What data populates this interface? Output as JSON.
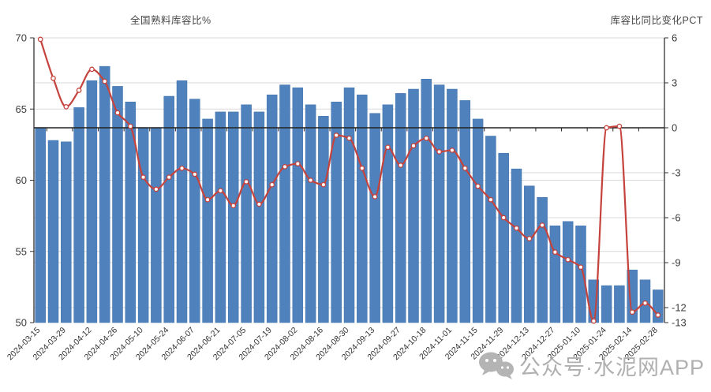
{
  "titles": {
    "left": "全国熟料库容比%",
    "right": "库容比同比变化PCT"
  },
  "watermark": {
    "text": "公众号·水泥网APP",
    "icon": "wechat-icon"
  },
  "colors": {
    "bar": "#4f81bd",
    "bar_edge": "#4173ab",
    "line": "#c5433c",
    "marker_fill": "#ffffff",
    "grid": "#d9d9d9",
    "zero_line": "#222222",
    "axis": "#333333",
    "tick_label": "#3d3d3d",
    "x_label": "#333333",
    "watermark": "#b4b4b4"
  },
  "chart_data": {
    "type": "bar",
    "n_slots": 49,
    "x_tick_labels": [
      "2024-03-15",
      "2024-03-29",
      "2024-04-12",
      "2024-04-26",
      "2024-05-10",
      "2024-05-24",
      "2024-06-07",
      "2024-06-21",
      "2024-07-05",
      "2024-07-19",
      "2024-08-02",
      "2024-08-16",
      "2024-08-30",
      "2024-09-13",
      "2024-09-27",
      "2024-10-18",
      "2024-11-01",
      "2024-11-15",
      "2024-11-29",
      "2024-12-13",
      "2024-12-27",
      "2025-01-10",
      "2025-01-24",
      "2025-02-14",
      "2025-02-28"
    ],
    "label_every_n_slots": 2,
    "left_axis_ticks": [
      70,
      65,
      60,
      55,
      50
    ],
    "right_axis_ticks": [
      6,
      3,
      0,
      -3,
      -6,
      -9,
      -12,
      -13
    ],
    "left_ylim": [
      50,
      70
    ],
    "right_ylim": [
      -13,
      6
    ],
    "grid": true,
    "legend_position": "none",
    "series": [
      {
        "name": "全国熟料库容比%",
        "type": "bar",
        "axis": "left",
        "values": [
          63.7,
          62.8,
          62.7,
          65.1,
          67.0,
          68.0,
          66.6,
          65.5,
          63.7,
          63.7,
          65.9,
          67.0,
          65.7,
          64.3,
          64.8,
          64.8,
          65.3,
          64.8,
          66.0,
          66.7,
          66.5,
          65.3,
          64.5,
          65.5,
          66.5,
          66.0,
          64.7,
          65.3,
          66.1,
          66.4,
          67.1,
          66.7,
          66.4,
          65.6,
          64.3,
          63.1,
          61.9,
          60.8,
          59.6,
          58.8,
          56.8,
          57.1,
          56.8,
          53.0,
          52.6,
          52.6,
          53.7,
          53.0,
          52.3
        ]
      },
      {
        "name": "库容比同比变化PCT",
        "type": "line",
        "axis": "right",
        "values": [
          5.9,
          3.3,
          1.4,
          2.5,
          3.9,
          3.1,
          1.0,
          0.1,
          -3.3,
          -4.1,
          -3.3,
          -2.7,
          -3.1,
          -4.8,
          -4.2,
          -5.2,
          -3.6,
          -5.1,
          -3.8,
          -2.6,
          -2.4,
          -3.5,
          -3.8,
          -0.5,
          -0.7,
          -2.7,
          -4.6,
          -1.3,
          -2.5,
          -1.2,
          -0.7,
          -1.6,
          -1.5,
          -2.7,
          -3.9,
          -4.8,
          -6.0,
          -6.7,
          -7.4,
          -6.5,
          -8.3,
          -8.8,
          -9.3,
          -12.9,
          0.0,
          0.1,
          -12.3,
          -11.7,
          -12.5
        ]
      }
    ]
  }
}
